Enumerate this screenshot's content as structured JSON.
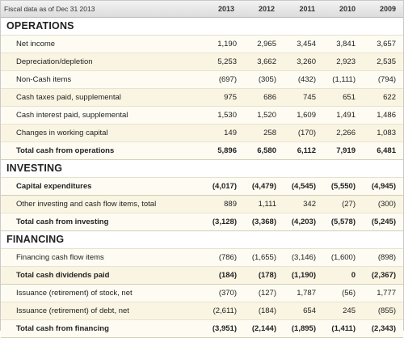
{
  "header": {
    "label": "Fiscal data as of Dec 31 2013",
    "years": [
      "2013",
      "2012",
      "2011",
      "2010",
      "2009"
    ]
  },
  "sections": [
    {
      "title": "OPERATIONS",
      "rows": [
        {
          "label": "Net income",
          "values": [
            "1,190",
            "2,965",
            "3,454",
            "3,841",
            "3,657"
          ],
          "bold": false
        },
        {
          "label": "Depreciation/depletion",
          "values": [
            "5,253",
            "3,662",
            "3,260",
            "2,923",
            "2,535"
          ],
          "bold": false
        },
        {
          "label": "Non-Cash items",
          "values": [
            "(697)",
            "(305)",
            "(432)",
            "(1,111)",
            "(794)"
          ],
          "bold": false
        },
        {
          "label": "Cash taxes paid, supplemental",
          "values": [
            "975",
            "686",
            "745",
            "651",
            "622"
          ],
          "bold": false
        },
        {
          "label": "Cash interest paid, supplemental",
          "values": [
            "1,530",
            "1,520",
            "1,609",
            "1,491",
            "1,486"
          ],
          "bold": false
        },
        {
          "label": "Changes in working capital",
          "values": [
            "149",
            "258",
            "(170)",
            "2,266",
            "1,083"
          ],
          "bold": false
        },
        {
          "label": "Total cash from operations",
          "values": [
            "5,896",
            "6,580",
            "6,112",
            "7,919",
            "6,481"
          ],
          "bold": true
        }
      ]
    },
    {
      "title": "INVESTING",
      "rows": [
        {
          "label": "Capital expenditures",
          "values": [
            "(4,017)",
            "(4,479)",
            "(4,545)",
            "(5,550)",
            "(4,945)"
          ],
          "bold": true
        },
        {
          "label": "Other investing and cash flow items, total",
          "values": [
            "889",
            "1,111",
            "342",
            "(27)",
            "(300)"
          ],
          "bold": false
        },
        {
          "label": "Total cash from investing",
          "values": [
            "(3,128)",
            "(3,368)",
            "(4,203)",
            "(5,578)",
            "(5,245)"
          ],
          "bold": true
        }
      ]
    },
    {
      "title": "FINANCING",
      "rows": [
        {
          "label": "Financing cash flow items",
          "values": [
            "(786)",
            "(1,655)",
            "(3,146)",
            "(1,600)",
            "(898)"
          ],
          "bold": false
        },
        {
          "label": "Total cash dividends paid",
          "values": [
            "(184)",
            "(178)",
            "(1,190)",
            "0",
            "(2,367)"
          ],
          "bold": true
        },
        {
          "label": "Issuance (retirement) of stock, net",
          "values": [
            "(370)",
            "(127)",
            "1,787",
            "(56)",
            "1,777"
          ],
          "bold": false
        },
        {
          "label": "Issuance (retirement) of debt, net",
          "values": [
            "(2,611)",
            "(184)",
            "654",
            "245",
            "(855)"
          ],
          "bold": false
        },
        {
          "label": "Total cash from financing",
          "values": [
            "(3,951)",
            "(2,144)",
            "(1,895)",
            "(1,411)",
            "(2,343)"
          ],
          "bold": true
        }
      ]
    }
  ]
}
